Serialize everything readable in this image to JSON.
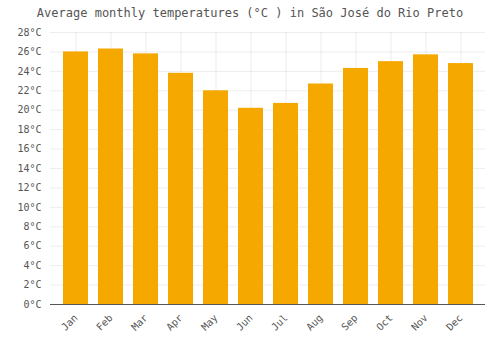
{
  "chart_data": {
    "type": "bar",
    "title": "Average monthly temperatures (°C ) in São José do Rio Preto",
    "categories": [
      "Jan",
      "Feb",
      "Mar",
      "Apr",
      "May",
      "Jun",
      "Jul",
      "Aug",
      "Sep",
      "Oct",
      "Nov",
      "Dec"
    ],
    "values": [
      26.0,
      26.3,
      25.8,
      23.8,
      22.0,
      20.2,
      20.7,
      22.7,
      24.3,
      25.0,
      25.7,
      24.8
    ],
    "color": "#F5A800",
    "ylim": [
      0,
      28
    ],
    "yticks": [
      {
        "value": 0,
        "label": "0°C"
      },
      {
        "value": 2,
        "label": "2°C"
      },
      {
        "value": 4,
        "label": "4°C"
      },
      {
        "value": 6,
        "label": "6°C"
      },
      {
        "value": 8,
        "label": "8°C"
      },
      {
        "value": 10,
        "label": "10°C"
      },
      {
        "value": 12,
        "label": "12°C"
      },
      {
        "value": 14,
        "label": "14°C"
      },
      {
        "value": 16,
        "label": "16°C"
      },
      {
        "value": 18,
        "label": "18°C"
      },
      {
        "value": 20,
        "label": "20°C"
      },
      {
        "value": 22,
        "label": "22°C"
      },
      {
        "value": 24,
        "label": "24°C"
      },
      {
        "value": 26,
        "label": "26°C"
      },
      {
        "value": 28,
        "label": "28°C"
      }
    ],
    "grid": true
  }
}
